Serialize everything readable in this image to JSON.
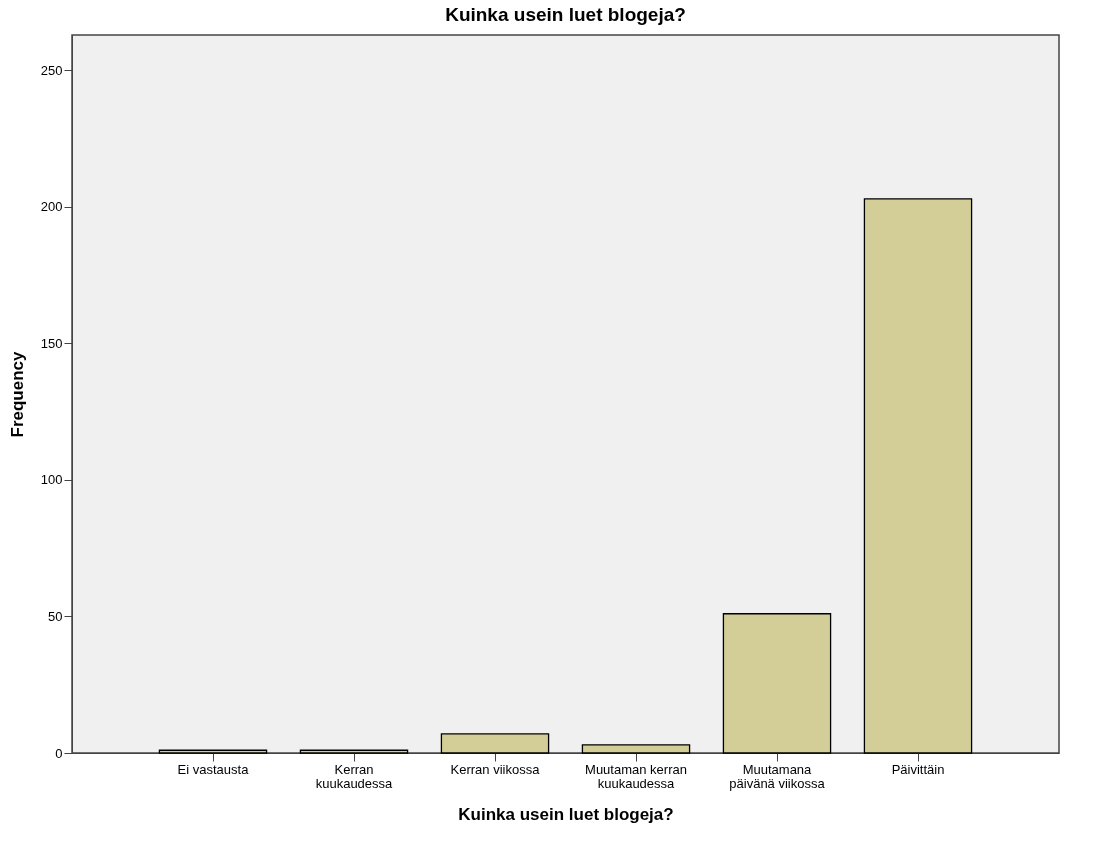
{
  "chart_data": {
    "type": "bar",
    "title": "Kuinka usein luet blogeja?",
    "xlabel": "Kuinka usein luet blogeja?",
    "ylabel": "Frequency",
    "categories": [
      "Ei vastausta",
      "Kerran kuukaudessa",
      "Kerran viikossa",
      "Muutaman kerran kuukaudessa",
      "Muutamana päivänä viikossa",
      "Päivittäin"
    ],
    "values": [
      1,
      1,
      7,
      3,
      51,
      203
    ],
    "color": "#d3ce97",
    "ylim": [
      0,
      263
    ],
    "yticks": [
      0,
      50,
      100,
      150,
      200,
      250
    ],
    "grid": false
  }
}
